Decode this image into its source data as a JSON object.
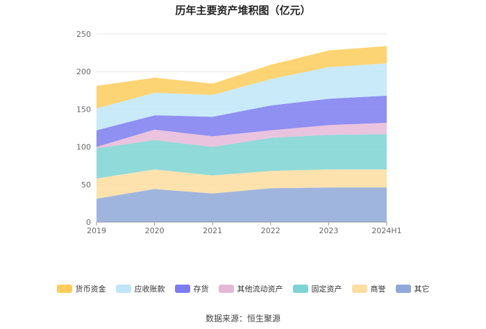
{
  "chart_data": {
    "type": "area",
    "stacked": true,
    "title": "历年主要资产堆积图（亿元）",
    "categories": [
      "2019",
      "2020",
      "2021",
      "2022",
      "2023",
      "2024H1"
    ],
    "ylim": [
      0,
      250
    ],
    "yticks": [
      0,
      50,
      100,
      150,
      200,
      250
    ],
    "grid": true,
    "legend_position": "bottom",
    "series": [
      {
        "name": "其它",
        "color": "#8fa8d8",
        "values": [
          31,
          44,
          38,
          45,
          46,
          46
        ]
      },
      {
        "name": "商誉",
        "color": "#fddda0",
        "values": [
          27,
          26,
          24,
          23,
          24,
          24
        ]
      },
      {
        "name": "固定资产",
        "color": "#7dd3d3",
        "values": [
          40,
          39,
          38,
          44,
          46,
          47
        ]
      },
      {
        "name": "其他流动资产",
        "color": "#e6b8d8",
        "values": [
          2,
          14,
          14,
          10,
          13,
          15
        ]
      },
      {
        "name": "存货",
        "color": "#7b7cf0",
        "values": [
          22,
          19,
          26,
          33,
          35,
          36
        ]
      },
      {
        "name": "应收账款",
        "color": "#bfe6f8",
        "values": [
          29,
          30,
          29,
          35,
          42,
          43
        ]
      },
      {
        "name": "货币资金",
        "color": "#fdcc5a",
        "values": [
          30,
          20,
          15,
          19,
          22,
          23
        ]
      }
    ],
    "legend_order": [
      "货币资金",
      "应收账款",
      "存货",
      "其他流动资产",
      "固定资产",
      "商誉",
      "其它"
    ]
  },
  "source": "数据来源：恒生聚源"
}
